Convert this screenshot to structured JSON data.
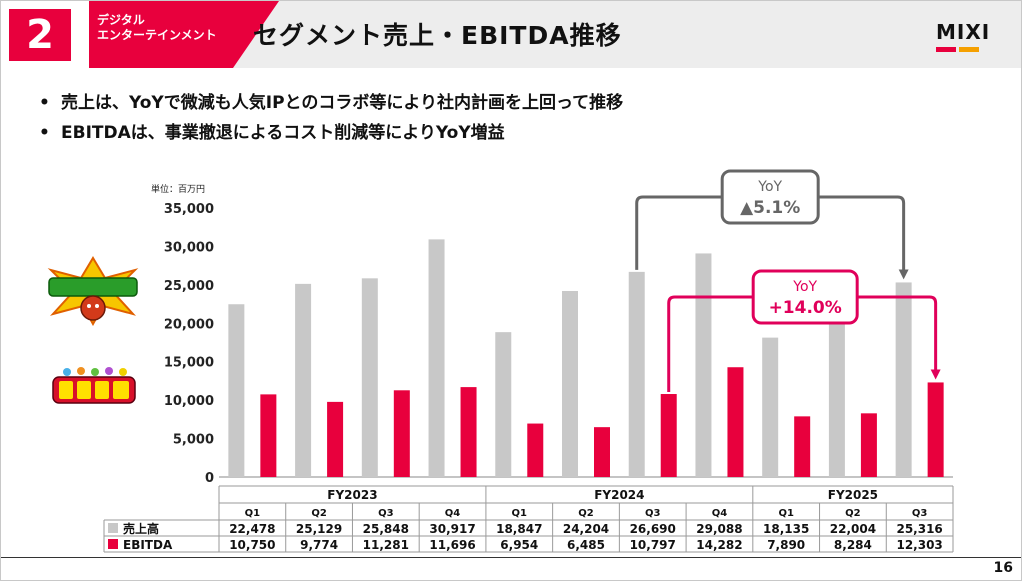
{
  "header": {
    "segment_number": "2",
    "segment_label_line1": "デジタル",
    "segment_label_line2": "エンターテインメント",
    "title": "セグメント売上・EBITDA推移",
    "logo_text": "MIXI",
    "logo_colors": [
      "#e8003d",
      "#f5a000"
    ]
  },
  "bullets": [
    "売上は、YoYで微減も人気IPとのコラボ等により社内計画を上回って推移",
    "EBITDAは、事業撤退によるコスト削減等によりYoY増益"
  ],
  "unit": "単位：百万円",
  "ip_logos": [
    "monster-strike-logo",
    "kotodaman-logo"
  ],
  "chart_data": {
    "type": "bar",
    "ylim": [
      0,
      35000
    ],
    "yticks": [
      "0",
      "5,000",
      "10,000",
      "15,000",
      "20,000",
      "25,000",
      "30,000",
      "35,000"
    ],
    "ytick_values": [
      0,
      5000,
      10000,
      15000,
      20000,
      25000,
      30000,
      35000
    ],
    "fiscal_years": [
      {
        "label": "FY2023",
        "quarters": [
          "Q1",
          "Q2",
          "Q3",
          "Q4"
        ]
      },
      {
        "label": "FY2024",
        "quarters": [
          "Q1",
          "Q2",
          "Q3",
          "Q4"
        ]
      },
      {
        "label": "FY2025",
        "quarters": [
          "Q1",
          "Q2",
          "Q3"
        ]
      }
    ],
    "series": [
      {
        "name": "売上高",
        "color": "#c8c8c8",
        "values": [
          22478,
          25129,
          25848,
          30917,
          18847,
          24204,
          26690,
          29088,
          18135,
          22004,
          25316
        ],
        "labels": [
          "22,478",
          "25,129",
          "25,848",
          "30,917",
          "18,847",
          "24,204",
          "26,690",
          "29,088",
          "18,135",
          "22,004",
          "25,316"
        ]
      },
      {
        "name": "EBITDA",
        "color": "#e8003d",
        "values": [
          10750,
          9774,
          11281,
          11696,
          6954,
          6485,
          10797,
          14282,
          7890,
          8284,
          12303
        ],
        "labels": [
          "10,750",
          "9,774",
          "11,281",
          "11,696",
          "6,954",
          "6,485",
          "10,797",
          "14,282",
          "7,890",
          "8,284",
          "12,303"
        ]
      }
    ],
    "annotations": [
      {
        "label": "YoY",
        "value": "▲5.1%",
        "from_index": 6,
        "to_index": 10,
        "series": 0,
        "color": "#666666"
      },
      {
        "label": "YoY",
        "value": "+14.0%",
        "from_index": 6,
        "to_index": 10,
        "series": 1,
        "color": "#e0005a"
      }
    ]
  },
  "page_number": "16"
}
